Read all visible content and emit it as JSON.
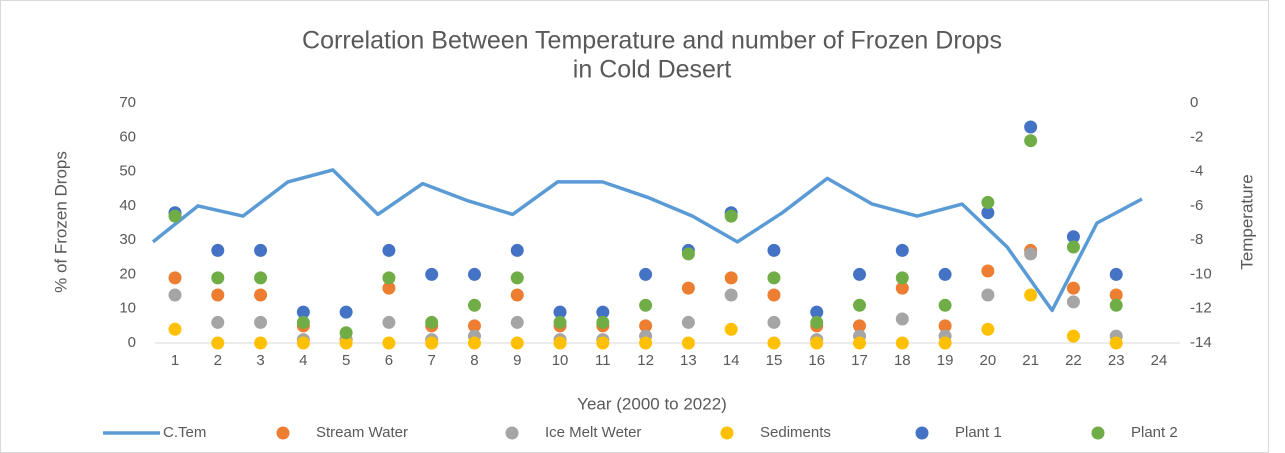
{
  "chart_data": {
    "type": "scatter",
    "title": [
      "Correlation Between Temperature and number of Frozen Drops",
      "in Cold Desert"
    ],
    "xlabel": "Year (2000 to 2022)",
    "ylabel": "% of Frozen Drops",
    "y2label": "Temperature",
    "categories": [
      "1",
      "2",
      "3",
      "4",
      "5",
      "6",
      "7",
      "8",
      "9",
      "10",
      "11",
      "12",
      "13",
      "14",
      "15",
      "16",
      "17",
      "18",
      "19",
      "20",
      "21",
      "22",
      "23",
      "24"
    ],
    "ylim": [
      0,
      70
    ],
    "yticks": [
      0,
      10,
      20,
      30,
      40,
      50,
      60,
      70
    ],
    "y2lim": [
      -14,
      0
    ],
    "y2ticks": [
      -14,
      -12,
      -10,
      -8,
      -6,
      -4,
      -2,
      0
    ],
    "legend": "bottom",
    "series": [
      {
        "name": "C.Tem",
        "type": "line",
        "axis": "y2",
        "color": "#5b9bd5",
        "values": [
          -8.1,
          -6.0,
          -6.6,
          -4.6,
          -3.9,
          -6.5,
          -4.7,
          -5.7,
          -6.5,
          -4.6,
          -4.6,
          -5.5,
          -6.6,
          -8.1,
          -6.4,
          -4.4,
          -5.9,
          -6.6,
          -5.9,
          -8.4,
          -12.1,
          -7.0,
          -5.6,
          null
        ]
      },
      {
        "name": "Stream Water",
        "color": "#ed7d31",
        "values": [
          19,
          14,
          14,
          5,
          1,
          16,
          5,
          5,
          14,
          5,
          5,
          5,
          16,
          19,
          14,
          5,
          5,
          16,
          5,
          21,
          27,
          16,
          14,
          null
        ]
      },
      {
        "name": "Ice Melt Weter",
        "color": "#a5a5a5",
        "values": [
          14,
          6,
          6,
          1,
          1,
          6,
          1,
          2,
          6,
          1,
          1,
          2,
          6,
          14,
          6,
          1,
          2,
          7,
          2,
          14,
          26,
          12,
          2,
          null
        ]
      },
      {
        "name": "Sediments",
        "color": "#ffc000",
        "values": [
          4,
          0,
          0,
          0,
          0,
          0,
          0,
          0,
          0,
          0,
          0,
          0,
          0,
          4,
          0,
          0,
          0,
          0,
          0,
          4,
          14,
          2,
          0,
          null
        ]
      },
      {
        "name": "Plant 1",
        "color": "#4472c4",
        "values": [
          38,
          27,
          27,
          9,
          9,
          27,
          20,
          20,
          27,
          9,
          9,
          20,
          27,
          38,
          27,
          9,
          20,
          27,
          20,
          38,
          63,
          31,
          20,
          null
        ]
      },
      {
        "name": "Plant 2",
        "color": "#70ad47",
        "values": [
          37,
          19,
          19,
          6,
          3,
          19,
          6,
          11,
          19,
          6,
          6,
          11,
          26,
          37,
          19,
          6,
          11,
          19,
          11,
          41,
          59,
          28,
          11,
          null
        ]
      }
    ]
  }
}
